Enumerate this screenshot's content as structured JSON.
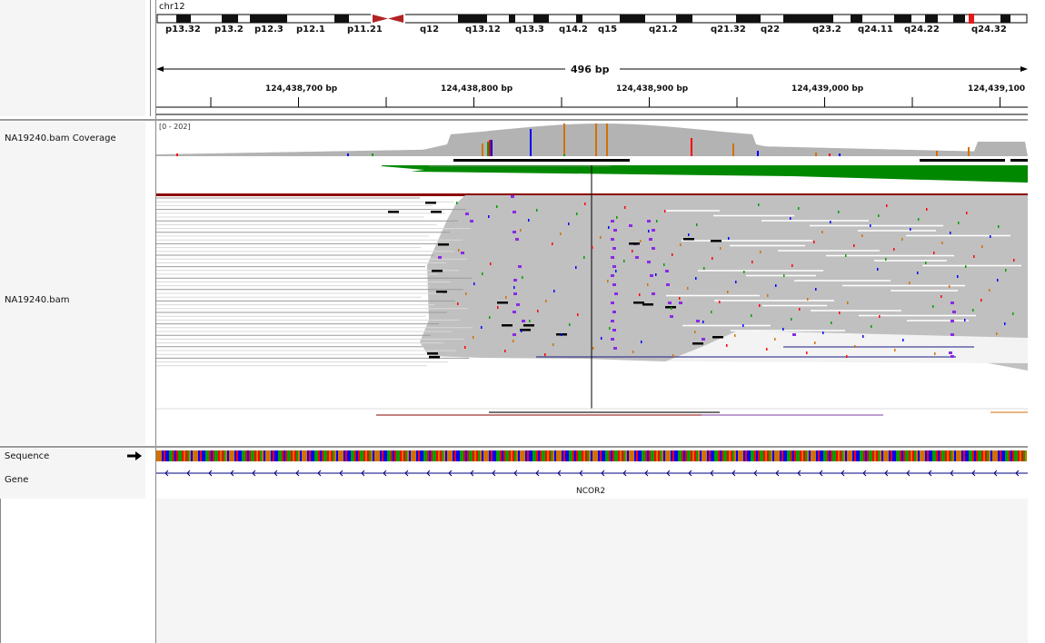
{
  "chromosome": {
    "name": "chr12",
    "bands": [
      {
        "label": "p13.32",
        "stain": "white"
      },
      {
        "label": "p13.2",
        "stain": "black"
      },
      {
        "label": "p12.3",
        "stain": "white"
      },
      {
        "label": "p12.1",
        "stain": "black"
      },
      {
        "label": "p11.21",
        "stain": "white"
      },
      {
        "label": "q12",
        "stain": "black"
      },
      {
        "label": "q13.12",
        "stain": "white"
      },
      {
        "label": "q13.3",
        "stain": "black"
      },
      {
        "label": "q14.2",
        "stain": "white"
      },
      {
        "label": "q15",
        "stain": "black"
      },
      {
        "label": "q21.2",
        "stain": "white"
      },
      {
        "label": "q21.32",
        "stain": "black"
      },
      {
        "label": "q22",
        "stain": "white"
      },
      {
        "label": "q23.2",
        "stain": "black"
      },
      {
        "label": "q24.11",
        "stain": "white"
      },
      {
        "label": "q24.22",
        "stain": "black"
      },
      {
        "label": "q24.32",
        "stain": "white"
      }
    ],
    "highlight_color": "#e31a1c",
    "centromere_color": "#b22222"
  },
  "ruler": {
    "span_label": "496 bp",
    "ticks": [
      "124,438,700 bp",
      "124,438,800 bp",
      "124,438,900 bp",
      "124,439,000 bp",
      "124,439,100 bp"
    ]
  },
  "tracks": {
    "coverage": {
      "name": "NA19240.bam Coverage",
      "range_label": "[0 - 202]",
      "bar_color": "#b3b3b3"
    },
    "alignment": {
      "name": "NA19240.bam",
      "read_color": "#c0c0c0",
      "insertion_color": "#8a2be2",
      "mismatch_colors": {
        "A": "#00a000",
        "C": "#0000ff",
        "G": "#d17105",
        "T": "#ff0000"
      }
    },
    "sequence": {
      "name": "Sequence",
      "strand_icon": "right-arrow-icon"
    },
    "gene": {
      "name": "Gene",
      "gene_name": "NCOR2",
      "color": "#000080"
    }
  }
}
